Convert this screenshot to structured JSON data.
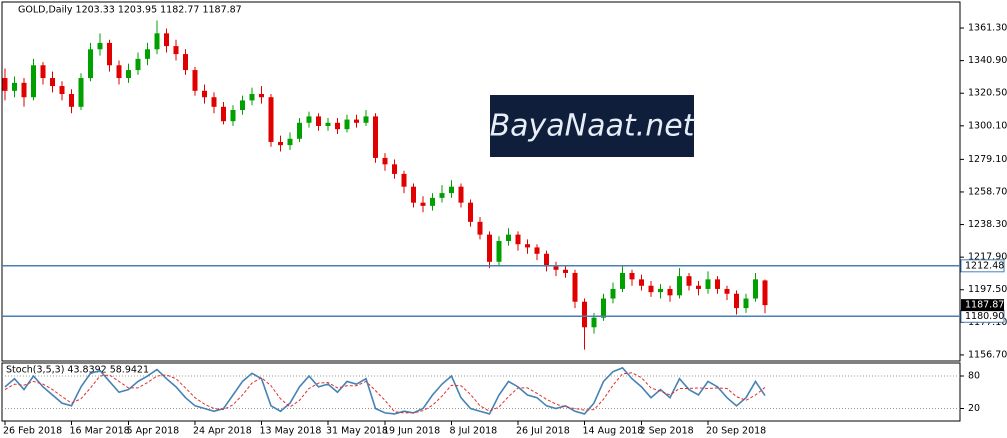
{
  "chart_data": [
    {
      "type": "candlestick",
      "title": "GOLD,Daily  1203.33 1203.95 1182.77 1187.87",
      "watermark": "BayaNaat.net",
      "categories": [
        "26 Feb 2018",
        null,
        null,
        null,
        null,
        null,
        null,
        "16 Mar 2018",
        null,
        null,
        null,
        null,
        null,
        "5 Apr 2018",
        null,
        null,
        null,
        null,
        null,
        null,
        "24 Apr 2018",
        null,
        null,
        null,
        null,
        null,
        null,
        "13 May 2018",
        null,
        null,
        null,
        null,
        null,
        null,
        "31 May 2018",
        null,
        null,
        null,
        null,
        null,
        "19 Jun 2018",
        null,
        null,
        null,
        null,
        null,
        null,
        "8 Jul 2018",
        null,
        null,
        null,
        null,
        null,
        null,
        "26 Jul 2018",
        null,
        null,
        null,
        null,
        null,
        null,
        "14 Aug 2018",
        null,
        null,
        null,
        null,
        null,
        "2 Sep 2018",
        null,
        null,
        null,
        null,
        null,
        null,
        "20 Sep 2018",
        null,
        null,
        null,
        null,
        null,
        null
      ],
      "open": [
        1330,
        1322,
        1327,
        1318,
        1338,
        1330,
        1325,
        1320,
        1312,
        1330,
        1348,
        1352,
        1338,
        1330,
        1335,
        1342,
        1348,
        1358,
        1350,
        1345,
        1335,
        1322,
        1318,
        1312,
        1303,
        1310,
        1316,
        1320,
        1318,
        1290,
        1288,
        1292,
        1302,
        1306,
        1300,
        1302,
        1298,
        1304,
        1302,
        1306,
        1280,
        1276,
        1270,
        1262,
        1252,
        1250,
        1255,
        1258,
        1262,
        1252,
        1240,
        1232,
        1215,
        1228,
        1232,
        1226,
        1224,
        1220,
        1212,
        1210,
        1208,
        1190,
        1174,
        1180,
        1192,
        1198,
        1208,
        1204,
        1200,
        1196,
        1198,
        1194,
        1206,
        1200,
        1198,
        1204,
        1198,
        1195,
        1186,
        1192,
        1203.33
      ],
      "high": [
        1336,
        1331,
        1330,
        1342,
        1340,
        1334,
        1328,
        1323,
        1333,
        1352,
        1358,
        1354,
        1341,
        1339,
        1346,
        1352,
        1366,
        1361,
        1354,
        1348,
        1337,
        1326,
        1321,
        1315,
        1313,
        1319,
        1324,
        1325,
        1320,
        1294,
        1296,
        1305,
        1309,
        1308,
        1305,
        1305,
        1307,
        1307,
        1310,
        1308,
        1283,
        1279,
        1272,
        1264,
        1256,
        1258,
        1263,
        1266,
        1264,
        1254,
        1243,
        1234,
        1231,
        1236,
        1234,
        1229,
        1226,
        1222,
        1215,
        1213,
        1210,
        1192,
        1183,
        1195,
        1202,
        1213,
        1210,
        1207,
        1203,
        1201,
        1200,
        1211,
        1208,
        1203,
        1209,
        1206,
        1200,
        1197,
        1195,
        1208,
        1203.95
      ],
      "low": [
        1316,
        1318,
        1312,
        1316,
        1326,
        1321,
        1316,
        1308,
        1310,
        1328,
        1344,
        1334,
        1326,
        1327,
        1332,
        1338,
        1345,
        1346,
        1341,
        1332,
        1319,
        1314,
        1308,
        1301,
        1300,
        1307,
        1313,
        1314,
        1287,
        1284,
        1285,
        1290,
        1299,
        1297,
        1297,
        1295,
        1296,
        1299,
        1300,
        1277,
        1272,
        1267,
        1258,
        1249,
        1246,
        1247,
        1252,
        1255,
        1249,
        1237,
        1229,
        1211,
        1212,
        1225,
        1222,
        1220,
        1216,
        1209,
        1206,
        1205,
        1186,
        1160,
        1170,
        1178,
        1189,
        1196,
        1200,
        1197,
        1193,
        1192,
        1190,
        1192,
        1197,
        1194,
        1195,
        1195,
        1191,
        1182,
        1183,
        1190,
        1182.77
      ],
      "close": [
        1322,
        1327,
        1318,
        1338,
        1330,
        1325,
        1320,
        1312,
        1330,
        1348,
        1352,
        1338,
        1330,
        1335,
        1342,
        1348,
        1358,
        1350,
        1345,
        1335,
        1322,
        1318,
        1312,
        1303,
        1310,
        1316,
        1320,
        1318,
        1290,
        1288,
        1292,
        1302,
        1306,
        1300,
        1302,
        1298,
        1304,
        1302,
        1306,
        1280,
        1276,
        1270,
        1262,
        1252,
        1250,
        1255,
        1258,
        1262,
        1252,
        1240,
        1232,
        1215,
        1228,
        1232,
        1226,
        1224,
        1220,
        1212,
        1210,
        1208,
        1190,
        1174,
        1180,
        1192,
        1198,
        1208,
        1204,
        1200,
        1196,
        1198,
        1194,
        1206,
        1200,
        1198,
        1204,
        1198,
        1195,
        1186,
        1192,
        1204,
        1187.87
      ],
      "up_color": "#00a000",
      "down_color": "#e00000",
      "ylim": [
        1152.9,
        1377.6
      ],
      "yticks": [
        {
          "value": 1361.3,
          "label": "1361.30"
        },
        {
          "value": 1340.9,
          "label": "1340.90"
        },
        {
          "value": 1320.5,
          "label": "1320.50"
        },
        {
          "value": 1300.1,
          "label": "1300.10"
        },
        {
          "value": 1279.1,
          "label": "1279.10"
        },
        {
          "value": 1258.7,
          "label": "1258.70"
        },
        {
          "value": 1238.3,
          "label": "1238.30"
        },
        {
          "value": 1217.9,
          "label": "1217.90"
        },
        {
          "value": 1197.5,
          "label": "1197.50"
        },
        {
          "value": 1177.1,
          "label": "1177.10"
        },
        {
          "value": 1156.7,
          "label": "1156.70"
        }
      ],
      "hlines": [
        1212.48,
        {
          "value": 1180.9,
          "label": "1180.90"
        }
      ],
      "hline_color": "#4a7fb5"
    },
    {
      "type": "line",
      "title": "Stoch(3,5,3) 43.8392 58.9421",
      "series": [
        {
          "color": "#4682b4",
          "values": [
            60,
            75,
            55,
            80,
            60,
            45,
            30,
            25,
            60,
            85,
            90,
            70,
            50,
            55,
            70,
            80,
            92,
            75,
            60,
            40,
            25,
            20,
            15,
            20,
            45,
            70,
            85,
            75,
            25,
            15,
            30,
            60,
            80,
            60,
            65,
            50,
            70,
            65,
            75,
            20,
            12,
            10,
            15,
            12,
            20,
            45,
            65,
            80,
            40,
            20,
            15,
            10,
            45,
            70,
            60,
            45,
            40,
            25,
            20,
            25,
            15,
            10,
            30,
            70,
            88,
            95,
            75,
            60,
            40,
            55,
            40,
            75,
            55,
            45,
            70,
            60,
            40,
            25,
            40,
            70,
            43.8392
          ]
        },
        {
          "color": "#e03030",
          "dashed": true,
          "values": [
            55,
            65,
            63,
            70,
            65,
            55,
            42,
            30,
            38,
            58,
            80,
            82,
            70,
            58,
            58,
            68,
            80,
            82,
            75,
            58,
            40,
            28,
            20,
            18,
            27,
            45,
            67,
            77,
            62,
            38,
            23,
            35,
            57,
            67,
            68,
            58,
            62,
            62,
            70,
            53,
            35,
            14,
            12,
            12,
            16,
            26,
            43,
            63,
            62,
            46,
            25,
            15,
            23,
            42,
            58,
            58,
            48,
            37,
            28,
            23,
            20,
            17,
            18,
            37,
            63,
            84,
            86,
            77,
            58,
            52,
            45,
            57,
            57,
            58,
            57,
            58,
            57,
            42,
            35,
            45,
            58.9421
          ]
        }
      ],
      "ylim": [
        -3,
        104
      ],
      "yticks": [
        20,
        80
      ]
    }
  ]
}
